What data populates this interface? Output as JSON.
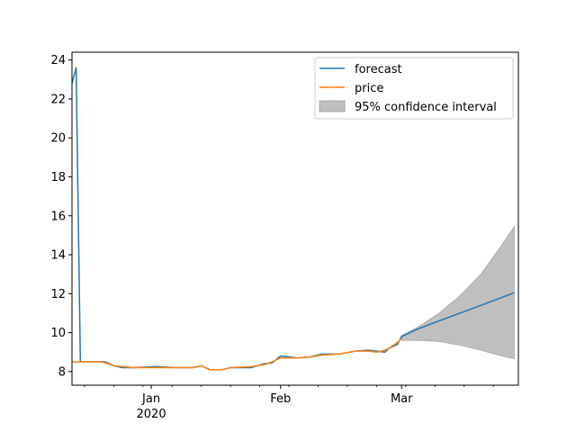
{
  "chart_data": {
    "type": "line",
    "title": "",
    "xlabel": "",
    "ylabel": "",
    "x_axis": {
      "type": "date",
      "range": [
        "2019-12-13",
        "2020-03-29"
      ],
      "major_ticks": [
        {
          "date": "2020-01-01",
          "label": "Jan",
          "sublabel": "2020"
        },
        {
          "date": "2020-02-01",
          "label": "Feb",
          "sublabel": ""
        },
        {
          "date": "2020-03-01",
          "label": "Mar",
          "sublabel": ""
        }
      ]
    },
    "y_axis": {
      "range": [
        7.3,
        24.4
      ],
      "ticks": [
        8,
        10,
        12,
        14,
        16,
        18,
        20,
        22,
        24
      ]
    },
    "grid": false,
    "legend_position": "upper-right",
    "series": [
      {
        "name": "forecast",
        "color": "#1f77b4",
        "points": [
          [
            "2019-12-13",
            22.8
          ],
          [
            "2019-12-14",
            23.6
          ],
          [
            "2019-12-15",
            8.5
          ],
          [
            "2019-12-16",
            8.5
          ],
          [
            "2019-12-20",
            8.5
          ],
          [
            "2019-12-21",
            8.5
          ],
          [
            "2019-12-23",
            8.3
          ],
          [
            "2019-12-25",
            8.2
          ],
          [
            "2019-12-28",
            8.2
          ],
          [
            "2020-01-02",
            8.25
          ],
          [
            "2020-01-07",
            8.2
          ],
          [
            "2020-01-11",
            8.2
          ],
          [
            "2020-01-13",
            8.3
          ],
          [
            "2020-01-15",
            8.1
          ],
          [
            "2020-01-18",
            8.1
          ],
          [
            "2020-01-20",
            8.2
          ],
          [
            "2020-01-25",
            8.2
          ],
          [
            "2020-01-28",
            8.4
          ],
          [
            "2020-01-30",
            8.45
          ],
          [
            "2020-02-01",
            8.8
          ],
          [
            "2020-02-05",
            8.7
          ],
          [
            "2020-02-08",
            8.75
          ],
          [
            "2020-02-11",
            8.9
          ],
          [
            "2020-02-15",
            8.9
          ],
          [
            "2020-02-19",
            9.05
          ],
          [
            "2020-02-22",
            9.1
          ],
          [
            "2020-02-24",
            9.05
          ],
          [
            "2020-02-26",
            9.0
          ],
          [
            "2020-02-27",
            9.2
          ],
          [
            "2020-02-29",
            9.4
          ],
          [
            "2020-03-01",
            9.8
          ],
          [
            "2020-03-05",
            10.2
          ],
          [
            "2020-03-10",
            10.6
          ],
          [
            "2020-03-15",
            11.0
          ],
          [
            "2020-03-20",
            11.4
          ],
          [
            "2020-03-25",
            11.8
          ],
          [
            "2020-03-28",
            12.05
          ]
        ]
      },
      {
        "name": "price",
        "color": "#ff7f0e",
        "points": [
          [
            "2019-12-13",
            8.5
          ],
          [
            "2019-12-20",
            8.5
          ],
          [
            "2019-12-21",
            8.45
          ],
          [
            "2019-12-23",
            8.3
          ],
          [
            "2019-12-25",
            8.25
          ],
          [
            "2019-12-28",
            8.2
          ],
          [
            "2020-01-02",
            8.2
          ],
          [
            "2020-01-07",
            8.2
          ],
          [
            "2020-01-11",
            8.2
          ],
          [
            "2020-01-13",
            8.3
          ],
          [
            "2020-01-15",
            8.1
          ],
          [
            "2020-01-18",
            8.1
          ],
          [
            "2020-01-20",
            8.2
          ],
          [
            "2020-01-25",
            8.25
          ],
          [
            "2020-01-28",
            8.35
          ],
          [
            "2020-01-30",
            8.5
          ],
          [
            "2020-02-01",
            8.7
          ],
          [
            "2020-02-05",
            8.7
          ],
          [
            "2020-02-08",
            8.75
          ],
          [
            "2020-02-11",
            8.85
          ],
          [
            "2020-02-15",
            8.9
          ],
          [
            "2020-02-19",
            9.05
          ],
          [
            "2020-02-22",
            9.05
          ],
          [
            "2020-02-24",
            9.0
          ],
          [
            "2020-02-26",
            9.1
          ],
          [
            "2020-02-27",
            9.2
          ],
          [
            "2020-02-29",
            9.5
          ],
          [
            "2020-03-01",
            9.7
          ]
        ]
      }
    ],
    "confidence_interval": {
      "name": "95% confidence interval",
      "color": "#bfbfbf",
      "edge_color": "#a9a9a9",
      "points": [
        [
          "2020-03-01",
          9.6,
          9.85
        ],
        [
          "2020-03-05",
          9.6,
          10.3
        ],
        [
          "2020-03-10",
          9.55,
          11.0
        ],
        [
          "2020-03-15",
          9.35,
          11.9
        ],
        [
          "2020-03-20",
          9.1,
          13.0
        ],
        [
          "2020-03-25",
          8.8,
          14.5
        ],
        [
          "2020-03-28",
          8.65,
          15.45
        ]
      ]
    }
  }
}
